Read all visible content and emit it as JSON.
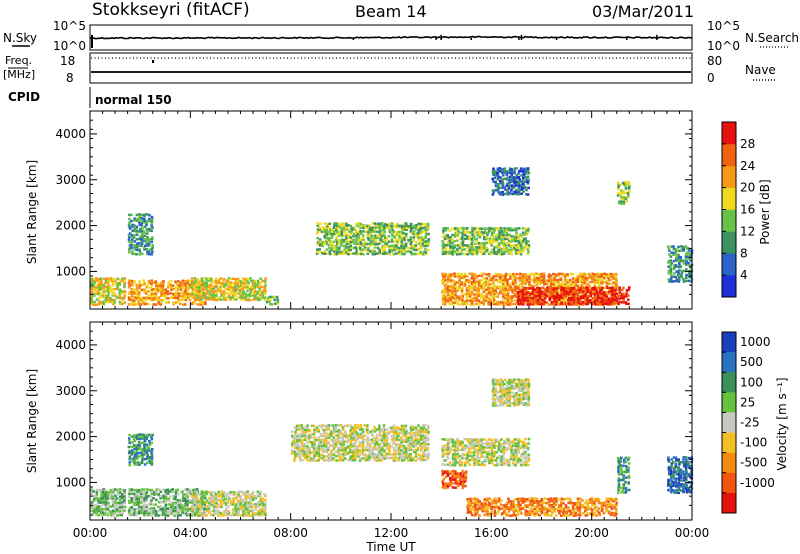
{
  "header": {
    "station": "Stokkseyri (fitACF)",
    "beam": "Beam 14",
    "date": "03/Mar/2011"
  },
  "summary": {
    "nsky_label": "N.Sky",
    "nsearch_label": "N.Search",
    "noise_tick_top": "10^5",
    "noise_tick_bottom": "10^0",
    "freq_label": "Freq.",
    "freq_unit": "[MHz]",
    "freq_tick_top": "18",
    "freq_tick_bottom": "8",
    "nave_label": "Nave",
    "nave_tick_top": "80",
    "nave_tick_bottom": "0",
    "cpid_label": "CPID",
    "cpid_value": "normal 150"
  },
  "xaxis": {
    "label": "Time UT",
    "ticks": [
      "00:00",
      "04:00",
      "08:00",
      "12:00",
      "16:00",
      "20:00",
      "00:00"
    ]
  },
  "yaxis": {
    "label": "Slant Range [km]",
    "ticks": [
      "1000",
      "2000",
      "3000",
      "4000"
    ]
  },
  "power_colorbar": {
    "label": "Power [dB]",
    "ticks": [
      "4",
      "8",
      "12",
      "16",
      "20",
      "24",
      "28"
    ],
    "colors": [
      "#1c2fd9",
      "#2a63c8",
      "#3b9460",
      "#68c24a",
      "#eed820",
      "#f79a16",
      "#f26310",
      "#e8110d"
    ]
  },
  "velocity_colorbar": {
    "label": "Velocity [m s⁻¹]",
    "ticks": [
      "1000",
      "500",
      "100",
      "25",
      "-25",
      "-100",
      "-500",
      "-1000"
    ],
    "colors": [
      "#1c3fbe",
      "#2a72c0",
      "#3a8f5a",
      "#66c23e",
      "#c8c8c0",
      "#f2c024",
      "#f58a10",
      "#f2560e",
      "#e8120d"
    ]
  },
  "chart_data": [
    {
      "type": "line",
      "panel": "noise",
      "series": [
        {
          "name": "N.Sky",
          "x": [
            0,
            2,
            4,
            6,
            8,
            10,
            12,
            14,
            16,
            18,
            20,
            22,
            24
          ],
          "y": [
            300,
            320,
            310,
            330,
            340,
            360,
            420,
            500,
            560,
            480,
            430,
            400,
            380
          ],
          "ylog": true,
          "ylim": [
            1,
            100000
          ]
        }
      ]
    },
    {
      "type": "line",
      "panel": "frequency-nave",
      "series": [
        {
          "name": "Freq.",
          "x": [
            0,
            24
          ],
          "y": [
            10,
            10
          ],
          "ylim": [
            8,
            18
          ]
        },
        {
          "name": "Nave",
          "x": [
            0,
            24
          ],
          "y": [
            74,
            74
          ],
          "ylim": [
            0,
            80
          ]
        }
      ]
    },
    {
      "type": "heatmap",
      "panel": "power",
      "xlabel": "Time UT",
      "ylabel": "Slant Range [km]",
      "xlim": [
        0,
        24
      ],
      "ylim": [
        180,
        4500
      ],
      "zlabel": "Power [dB]",
      "zlim": [
        0,
        32
      ],
      "regions": [
        {
          "t": [
            0.0,
            1.4
          ],
          "r": [
            300,
            900
          ],
          "level": 4
        },
        {
          "t": [
            1.5,
            4.6
          ],
          "r": [
            300,
            850
          ],
          "level": 5
        },
        {
          "t": [
            4.0,
            7.0
          ],
          "r": [
            400,
            900
          ],
          "level": 4
        },
        {
          "t": [
            1.5,
            2.5
          ],
          "r": [
            1400,
            2300
          ],
          "level": 2
        },
        {
          "t": [
            7.0,
            7.5
          ],
          "r": [
            300,
            500
          ],
          "level": 3
        },
        {
          "t": [
            9.0,
            13.5
          ],
          "r": [
            1400,
            2100
          ],
          "level": 3
        },
        {
          "t": [
            14.0,
            17.5
          ],
          "r": [
            1400,
            2000
          ],
          "level": 3
        },
        {
          "t": [
            14.0,
            21.0
          ],
          "r": [
            300,
            1000
          ],
          "level": 5
        },
        {
          "t": [
            17.0,
            21.5
          ],
          "r": [
            300,
            700
          ],
          "level": 7
        },
        {
          "t": [
            16.0,
            17.5
          ],
          "r": [
            2700,
            3300
          ],
          "level": 1
        },
        {
          "t": [
            21.0,
            21.5
          ],
          "r": [
            2500,
            3000
          ],
          "level": 3
        },
        {
          "t": [
            23.0,
            24.0
          ],
          "r": [
            800,
            1600
          ],
          "level": 2
        }
      ]
    },
    {
      "type": "heatmap",
      "panel": "velocity",
      "xlabel": "Time UT",
      "ylabel": "Slant Range [km]",
      "xlim": [
        0,
        24
      ],
      "ylim": [
        180,
        4500
      ],
      "zlabel": "Velocity [m s⁻¹]",
      "zlim": [
        -1000,
        1000
      ],
      "regions": [
        {
          "t": [
            0.0,
            1.4
          ],
          "r": [
            300,
            900
          ],
          "level": 3
        },
        {
          "t": [
            1.5,
            4.6
          ],
          "r": [
            300,
            900
          ],
          "level": 3
        },
        {
          "t": [
            1.5,
            2.5
          ],
          "r": [
            1400,
            2100
          ],
          "level": 2
        },
        {
          "t": [
            4.0,
            7.0
          ],
          "r": [
            300,
            850
          ],
          "level": 4
        },
        {
          "t": [
            8.0,
            13.5
          ],
          "r": [
            1500,
            2300
          ],
          "level": 4
        },
        {
          "t": [
            14.0,
            17.5
          ],
          "r": [
            1400,
            2000
          ],
          "level": 4
        },
        {
          "t": [
            15.0,
            21.0
          ],
          "r": [
            300,
            700
          ],
          "level": 6
        },
        {
          "t": [
            14.0,
            15.0
          ],
          "r": [
            900,
            1300
          ],
          "level": 7
        },
        {
          "t": [
            16.0,
            17.5
          ],
          "r": [
            2700,
            3300
          ],
          "level": 4
        },
        {
          "t": [
            21.0,
            21.5
          ],
          "r": [
            800,
            1600
          ],
          "level": 2
        },
        {
          "t": [
            23.0,
            24.0
          ],
          "r": [
            800,
            1600
          ],
          "level": 1
        }
      ]
    }
  ]
}
